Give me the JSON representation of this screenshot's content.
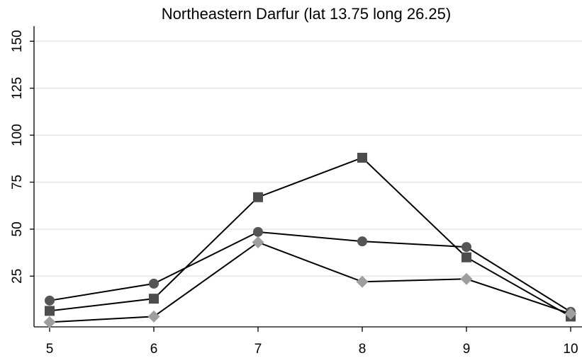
{
  "chart_data": {
    "type": "line",
    "title": "Northeastern Darfur (lat 13.75 long 26.25)",
    "xlabel": "",
    "ylabel": "",
    "x": [
      5,
      6,
      7,
      8,
      9,
      10
    ],
    "xlim": [
      5,
      10
    ],
    "ylim": [
      -2,
      158
    ],
    "x_ticks": [
      5,
      6,
      7,
      8,
      9,
      10
    ],
    "y_ticks": [
      25,
      50,
      75,
      100,
      125,
      150
    ],
    "grid": true,
    "series": [
      {
        "marker": "circle",
        "color": "#555555",
        "values": [
          12,
          21,
          48.5,
          43.5,
          40.5,
          6
        ]
      },
      {
        "marker": "square",
        "color": "#4d4d4d",
        "values": [
          6.5,
          13,
          67,
          88,
          35,
          3.5
        ]
      },
      {
        "marker": "diamond",
        "color": "#9e9e9e",
        "values": [
          0.5,
          3.5,
          43,
          22,
          23.5,
          5
        ]
      }
    ]
  }
}
